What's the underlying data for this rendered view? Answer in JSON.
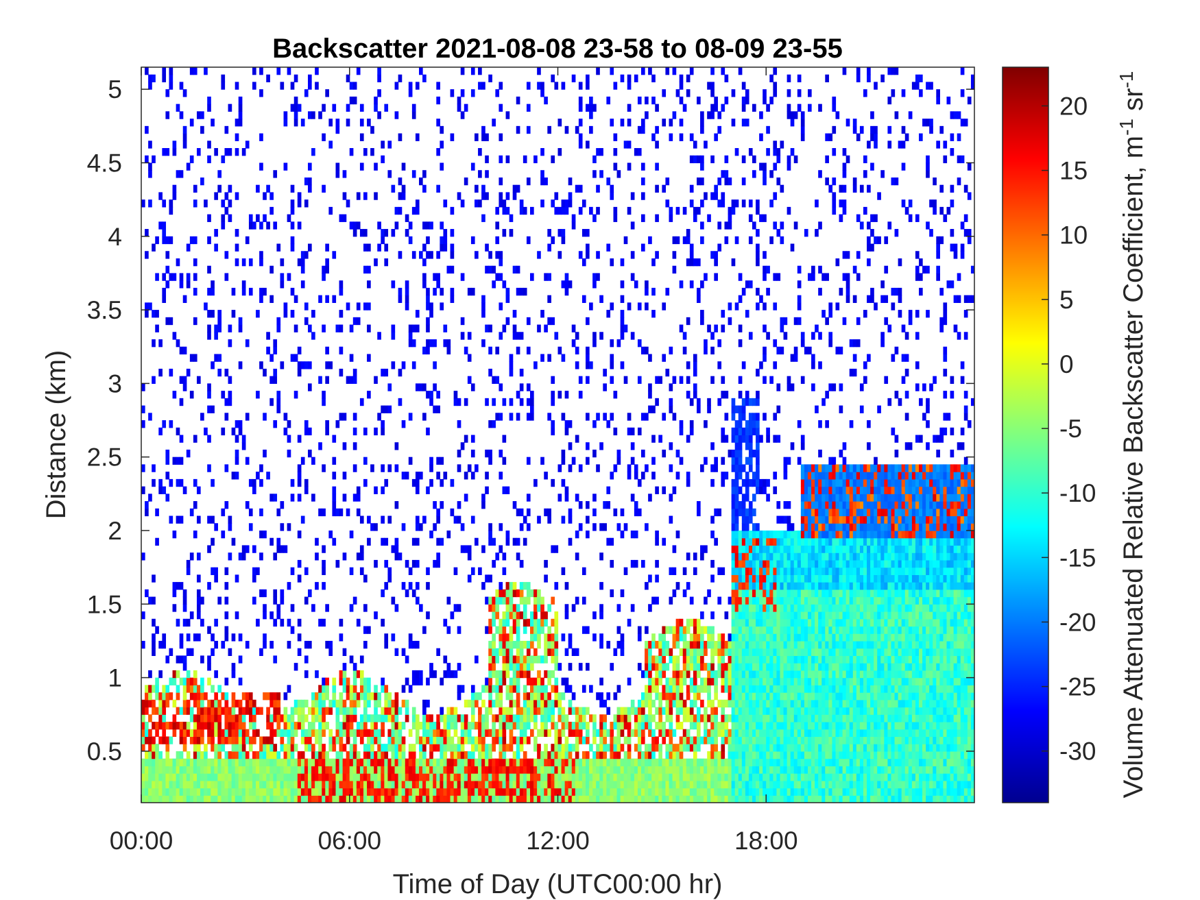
{
  "chart_data": {
    "type": "heatmap",
    "title": "Backscatter 2021-08-08 23-58 to 08-09 23-55",
    "xlabel": "Time of Day (UTC00:00 hr)",
    "ylabel": "Distance (km)",
    "x_ticks": [
      "00:00",
      "06:00",
      "12:00",
      "18:00"
    ],
    "x_tick_hours": [
      0,
      6,
      12,
      18
    ],
    "xlim_hours": [
      0,
      24
    ],
    "y_ticks": [
      "0.5",
      "1",
      "1.5",
      "2",
      "2.5",
      "3",
      "3.5",
      "4",
      "4.5",
      "5"
    ],
    "y_tick_values": [
      0.5,
      1,
      1.5,
      2,
      2.5,
      3,
      3.5,
      4,
      4.5,
      5
    ],
    "ylim": [
      0.15,
      5.15
    ],
    "colorbar": {
      "label": "Volume Attenuated Relative Backscatter Coefficient, m",
      "label_sup1": "-1",
      "label_mid": " sr",
      "label_sup2": "-1",
      "ticks": [
        "20",
        "15",
        "10",
        "5",
        "0",
        "-5",
        "-10",
        "-15",
        "-20",
        "-25",
        "-30"
      ],
      "tick_values": [
        20,
        15,
        10,
        5,
        0,
        -5,
        -10,
        -15,
        -20,
        -25,
        -30
      ],
      "limits": [
        -34,
        23
      ],
      "colormap": "jet"
    },
    "grid": false,
    "features": [
      {
        "desc": "near-surface aerosol layer",
        "hours": [
          0,
          24
        ],
        "km": [
          0.15,
          0.5
        ],
        "value": -5
      },
      {
        "desc": "strong residual layer",
        "hours": [
          0.5,
          3.5
        ],
        "km": [
          0.55,
          0.9
        ],
        "value": 16
      },
      {
        "desc": "strong layer near surface",
        "hours": [
          4.5,
          12.5
        ],
        "km": [
          0.2,
          0.45
        ],
        "value": 14
      },
      {
        "desc": "cloud/aerosol plume",
        "hours": [
          10.5,
          11.8
        ],
        "km": [
          0.6,
          1.2
        ],
        "value": 12
      },
      {
        "desc": "boundary layer top",
        "hours": [
          15,
          16.5
        ],
        "km": [
          0.7,
          1.2
        ],
        "value": 12
      },
      {
        "desc": "deep mixed layer",
        "hours": [
          17,
          24
        ],
        "km": [
          0.15,
          2.0
        ],
        "value": -12
      },
      {
        "desc": "elevated layer",
        "hours": [
          21,
          23.5
        ],
        "km": [
          2.0,
          2.4
        ],
        "value": 12
      }
    ]
  }
}
